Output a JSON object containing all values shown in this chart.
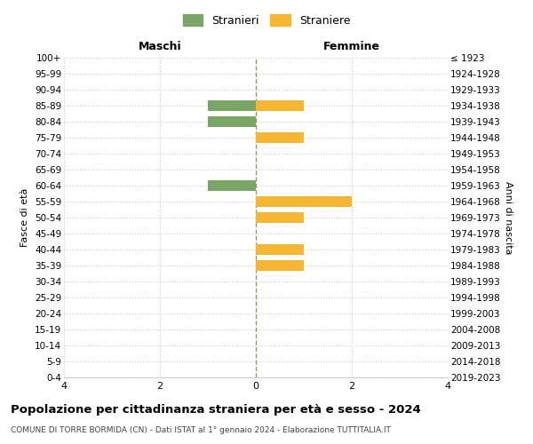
{
  "age_groups": [
    "100+",
    "95-99",
    "90-94",
    "85-89",
    "80-84",
    "75-79",
    "70-74",
    "65-69",
    "60-64",
    "55-59",
    "50-54",
    "45-49",
    "40-44",
    "35-39",
    "30-34",
    "25-29",
    "20-24",
    "15-19",
    "10-14",
    "5-9",
    "0-4"
  ],
  "birth_years": [
    "≤ 1923",
    "1924-1928",
    "1929-1933",
    "1934-1938",
    "1939-1943",
    "1944-1948",
    "1949-1953",
    "1954-1958",
    "1959-1963",
    "1964-1968",
    "1969-1973",
    "1974-1978",
    "1979-1983",
    "1984-1988",
    "1989-1993",
    "1994-1998",
    "1999-2003",
    "2004-2008",
    "2009-2013",
    "2014-2018",
    "2019-2023"
  ],
  "maschi": [
    0,
    0,
    0,
    1,
    1,
    0,
    0,
    0,
    1,
    0,
    0,
    0,
    0,
    0,
    0,
    0,
    0,
    0,
    0,
    0,
    0
  ],
  "femmine": [
    0,
    0,
    0,
    1,
    0,
    1,
    0,
    0,
    0,
    2,
    1,
    0,
    1,
    1,
    0,
    0,
    0,
    0,
    0,
    0,
    0
  ],
  "color_maschi": "#7aa665",
  "color_femmine": "#f5b731",
  "xlim": 4,
  "title": "Popolazione per cittadinanza straniera per età e sesso - 2024",
  "subtitle": "COMUNE DI TORRE BORMIDA (CN) - Dati ISTAT al 1° gennaio 2024 - Elaborazione TUTTITALIA.IT",
  "legend_stranieri": "Stranieri",
  "legend_straniere": "Straniere",
  "label_maschi": "Maschi",
  "label_femmine": "Femmine",
  "ylabel_left": "Fasce di età",
  "ylabel_right": "Anni di nascita",
  "bg_color": "#ffffff",
  "grid_color": "#cccccc",
  "center_line_color": "#999966"
}
